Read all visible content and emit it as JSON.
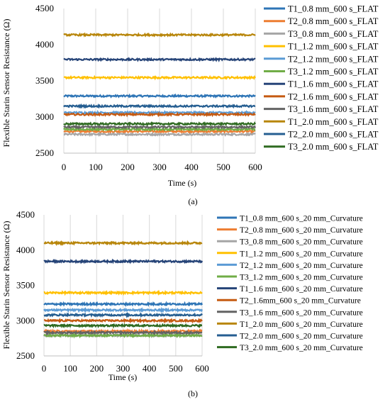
{
  "chart_data": [
    {
      "type": "line",
      "panel_label": "(a)",
      "xlabel": "Time (s)",
      "ylabel": "Flexible Starin Sensor Resistance (Ω)",
      "xlim": [
        0,
        600
      ],
      "ylim": [
        2500,
        4500
      ],
      "x_ticks": [
        "0",
        "100",
        "200",
        "300",
        "400",
        "500",
        "600"
      ],
      "y_ticks": [
        "2500",
        "3000",
        "3500",
        "4000",
        "4500"
      ],
      "grid": "vertical",
      "legend_position": "right",
      "series": [
        {
          "name": "T1_0.8 mm_600 s_FLAT",
          "color": "#2e75b6",
          "value": 3290
        },
        {
          "name": "T2_0.8 mm_600 s_FLAT",
          "color": "#ed7d31",
          "value": 2800
        },
        {
          "name": "T3_0.8 mm_600 s_FLAT",
          "color": "#a5a5a5",
          "value": 2760
        },
        {
          "name": "T1_1.2 mm_600 s_FLAT",
          "color": "#ffc000",
          "value": 3545
        },
        {
          "name": "T2_1.2 mm_600 s_FLAT",
          "color": "#5b9bd5",
          "value": 3060
        },
        {
          "name": "T3_1.2 mm_600 s_FLAT",
          "color": "#70ad47",
          "value": 2830
        },
        {
          "name": "T1_1.6 mm_600 s_FLAT",
          "color": "#264478",
          "value": 3795
        },
        {
          "name": "T2_1.6 mm_600 s_FLAT",
          "color": "#c55a11",
          "value": 3035
        },
        {
          "name": "T3_1.6 mm_600 s_FLAT",
          "color": "#636363",
          "value": 2860
        },
        {
          "name": "T1_2.0 mm_600 s_FLAT",
          "color": "#b8860b",
          "value": 4135
        },
        {
          "name": "T2_2.0 mm_600 s_FLAT",
          "color": "#255e91",
          "value": 3150
        },
        {
          "name": "T3_2.0 mm_600 s_FLAT",
          "color": "#2f6b21",
          "value": 2905
        }
      ]
    },
    {
      "type": "line",
      "panel_label": "(b)",
      "xlabel": "Time (s)",
      "ylabel": "Flexible Starin Sensor Resistance (Ω)",
      "xlim": [
        0,
        600
      ],
      "ylim": [
        2500,
        4500
      ],
      "x_ticks": [
        "0",
        "100",
        "200",
        "300",
        "400",
        "500",
        "600"
      ],
      "y_ticks": [
        "2500",
        "3000",
        "3500",
        "4000",
        "4500"
      ],
      "grid": "vertical",
      "legend_position": "right",
      "series": [
        {
          "name": "T1_0.8 mm_600 s_20 mm_Curvature",
          "color": "#2e75b6",
          "value": 3235
        },
        {
          "name": "T2_0.8 mm_600 s_20 mm_Curvature",
          "color": "#ed7d31",
          "value": 2850
        },
        {
          "name": "T3_0.8 mm_600 s_20 mm_Curvature",
          "color": "#a5a5a5",
          "value": 2790
        },
        {
          "name": "T1_1.2 mm_600 s_20 mm_Curvature",
          "color": "#ffc000",
          "value": 3395
        },
        {
          "name": "T2_1.2 mm_600 s_20 mm_Curvature",
          "color": "#5b9bd5",
          "value": 3150
        },
        {
          "name": "T3_1.2 mm_600 s_20 mm_Curvature",
          "color": "#70ad47",
          "value": 2790
        },
        {
          "name": "T1_1.6 mm_600 s_20 mm_Curvature",
          "color": "#264478",
          "value": 3840
        },
        {
          "name": "T2_1.6mm_600 s_20 mm_Curvature",
          "color": "#c55a11",
          "value": 3000
        },
        {
          "name": "T3_1.6 mm_600 s_20 mm_Curvature",
          "color": "#636363",
          "value": 2830
        },
        {
          "name": "T1_2.0 mm_600 s_20 mm_Curvature",
          "color": "#b8860b",
          "value": 4100
        },
        {
          "name": "T2_2.0 mm_600 s_20 mm_Curvature",
          "color": "#255e91",
          "value": 3080
        },
        {
          "name": "T3_2.0 mm_600 s_20 mm_Curvature",
          "color": "#2f6b21",
          "value": 2930
        }
      ]
    }
  ]
}
